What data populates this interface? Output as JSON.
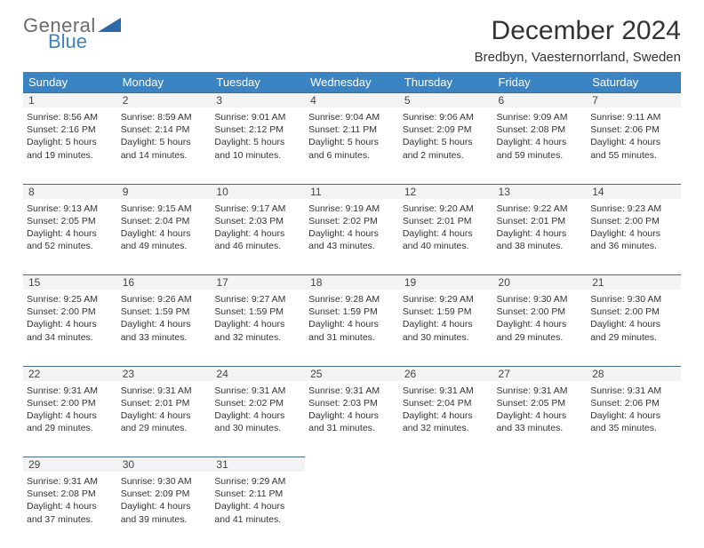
{
  "logo": {
    "word1": "General",
    "word2": "Blue",
    "word1_color": "#6b6b6b",
    "word2_color": "#3b84c4",
    "shape_color": "#2f6aa8"
  },
  "title": "December 2024",
  "location": "Bredbyn, Vaesternorrland, Sweden",
  "colors": {
    "header_bg": "#3b84c4",
    "header_text": "#ffffff",
    "daynum_bg": "#f3f3f3",
    "daynum_border": "#4a6a8a",
    "body_text": "#333333"
  },
  "typography": {
    "title_fontsize": 30,
    "location_fontsize": 15,
    "weekday_fontsize": 13,
    "daynum_fontsize": 12,
    "cell_fontsize": 10.5
  },
  "weekdays": [
    "Sunday",
    "Monday",
    "Tuesday",
    "Wednesday",
    "Thursday",
    "Friday",
    "Saturday"
  ],
  "weeks": [
    {
      "nums": [
        "1",
        "2",
        "3",
        "4",
        "5",
        "6",
        "7"
      ],
      "cells": [
        {
          "sunrise": "Sunrise: 8:56 AM",
          "sunset": "Sunset: 2:16 PM",
          "day1": "Daylight: 5 hours",
          "day2": "and 19 minutes."
        },
        {
          "sunrise": "Sunrise: 8:59 AM",
          "sunset": "Sunset: 2:14 PM",
          "day1": "Daylight: 5 hours",
          "day2": "and 14 minutes."
        },
        {
          "sunrise": "Sunrise: 9:01 AM",
          "sunset": "Sunset: 2:12 PM",
          "day1": "Daylight: 5 hours",
          "day2": "and 10 minutes."
        },
        {
          "sunrise": "Sunrise: 9:04 AM",
          "sunset": "Sunset: 2:11 PM",
          "day1": "Daylight: 5 hours",
          "day2": "and 6 minutes."
        },
        {
          "sunrise": "Sunrise: 9:06 AM",
          "sunset": "Sunset: 2:09 PM",
          "day1": "Daylight: 5 hours",
          "day2": "and 2 minutes."
        },
        {
          "sunrise": "Sunrise: 9:09 AM",
          "sunset": "Sunset: 2:08 PM",
          "day1": "Daylight: 4 hours",
          "day2": "and 59 minutes."
        },
        {
          "sunrise": "Sunrise: 9:11 AM",
          "sunset": "Sunset: 2:06 PM",
          "day1": "Daylight: 4 hours",
          "day2": "and 55 minutes."
        }
      ]
    },
    {
      "nums": [
        "8",
        "9",
        "10",
        "11",
        "12",
        "13",
        "14"
      ],
      "cells": [
        {
          "sunrise": "Sunrise: 9:13 AM",
          "sunset": "Sunset: 2:05 PM",
          "day1": "Daylight: 4 hours",
          "day2": "and 52 minutes."
        },
        {
          "sunrise": "Sunrise: 9:15 AM",
          "sunset": "Sunset: 2:04 PM",
          "day1": "Daylight: 4 hours",
          "day2": "and 49 minutes."
        },
        {
          "sunrise": "Sunrise: 9:17 AM",
          "sunset": "Sunset: 2:03 PM",
          "day1": "Daylight: 4 hours",
          "day2": "and 46 minutes."
        },
        {
          "sunrise": "Sunrise: 9:19 AM",
          "sunset": "Sunset: 2:02 PM",
          "day1": "Daylight: 4 hours",
          "day2": "and 43 minutes."
        },
        {
          "sunrise": "Sunrise: 9:20 AM",
          "sunset": "Sunset: 2:01 PM",
          "day1": "Daylight: 4 hours",
          "day2": "and 40 minutes."
        },
        {
          "sunrise": "Sunrise: 9:22 AM",
          "sunset": "Sunset: 2:01 PM",
          "day1": "Daylight: 4 hours",
          "day2": "and 38 minutes."
        },
        {
          "sunrise": "Sunrise: 9:23 AM",
          "sunset": "Sunset: 2:00 PM",
          "day1": "Daylight: 4 hours",
          "day2": "and 36 minutes."
        }
      ]
    },
    {
      "nums": [
        "15",
        "16",
        "17",
        "18",
        "19",
        "20",
        "21"
      ],
      "cells": [
        {
          "sunrise": "Sunrise: 9:25 AM",
          "sunset": "Sunset: 2:00 PM",
          "day1": "Daylight: 4 hours",
          "day2": "and 34 minutes."
        },
        {
          "sunrise": "Sunrise: 9:26 AM",
          "sunset": "Sunset: 1:59 PM",
          "day1": "Daylight: 4 hours",
          "day2": "and 33 minutes."
        },
        {
          "sunrise": "Sunrise: 9:27 AM",
          "sunset": "Sunset: 1:59 PM",
          "day1": "Daylight: 4 hours",
          "day2": "and 32 minutes."
        },
        {
          "sunrise": "Sunrise: 9:28 AM",
          "sunset": "Sunset: 1:59 PM",
          "day1": "Daylight: 4 hours",
          "day2": "and 31 minutes."
        },
        {
          "sunrise": "Sunrise: 9:29 AM",
          "sunset": "Sunset: 1:59 PM",
          "day1": "Daylight: 4 hours",
          "day2": "and 30 minutes."
        },
        {
          "sunrise": "Sunrise: 9:30 AM",
          "sunset": "Sunset: 2:00 PM",
          "day1": "Daylight: 4 hours",
          "day2": "and 29 minutes."
        },
        {
          "sunrise": "Sunrise: 9:30 AM",
          "sunset": "Sunset: 2:00 PM",
          "day1": "Daylight: 4 hours",
          "day2": "and 29 minutes."
        }
      ]
    },
    {
      "nums": [
        "22",
        "23",
        "24",
        "25",
        "26",
        "27",
        "28"
      ],
      "cells": [
        {
          "sunrise": "Sunrise: 9:31 AM",
          "sunset": "Sunset: 2:00 PM",
          "day1": "Daylight: 4 hours",
          "day2": "and 29 minutes."
        },
        {
          "sunrise": "Sunrise: 9:31 AM",
          "sunset": "Sunset: 2:01 PM",
          "day1": "Daylight: 4 hours",
          "day2": "and 29 minutes."
        },
        {
          "sunrise": "Sunrise: 9:31 AM",
          "sunset": "Sunset: 2:02 PM",
          "day1": "Daylight: 4 hours",
          "day2": "and 30 minutes."
        },
        {
          "sunrise": "Sunrise: 9:31 AM",
          "sunset": "Sunset: 2:03 PM",
          "day1": "Daylight: 4 hours",
          "day2": "and 31 minutes."
        },
        {
          "sunrise": "Sunrise: 9:31 AM",
          "sunset": "Sunset: 2:04 PM",
          "day1": "Daylight: 4 hours",
          "day2": "and 32 minutes."
        },
        {
          "sunrise": "Sunrise: 9:31 AM",
          "sunset": "Sunset: 2:05 PM",
          "day1": "Daylight: 4 hours",
          "day2": "and 33 minutes."
        },
        {
          "sunrise": "Sunrise: 9:31 AM",
          "sunset": "Sunset: 2:06 PM",
          "day1": "Daylight: 4 hours",
          "day2": "and 35 minutes."
        }
      ]
    },
    {
      "nums": [
        "29",
        "30",
        "31",
        "",
        "",
        "",
        ""
      ],
      "cells": [
        {
          "sunrise": "Sunrise: 9:31 AM",
          "sunset": "Sunset: 2:08 PM",
          "day1": "Daylight: 4 hours",
          "day2": "and 37 minutes."
        },
        {
          "sunrise": "Sunrise: 9:30 AM",
          "sunset": "Sunset: 2:09 PM",
          "day1": "Daylight: 4 hours",
          "day2": "and 39 minutes."
        },
        {
          "sunrise": "Sunrise: 9:29 AM",
          "sunset": "Sunset: 2:11 PM",
          "day1": "Daylight: 4 hours",
          "day2": "and 41 minutes."
        },
        null,
        null,
        null,
        null
      ]
    }
  ]
}
